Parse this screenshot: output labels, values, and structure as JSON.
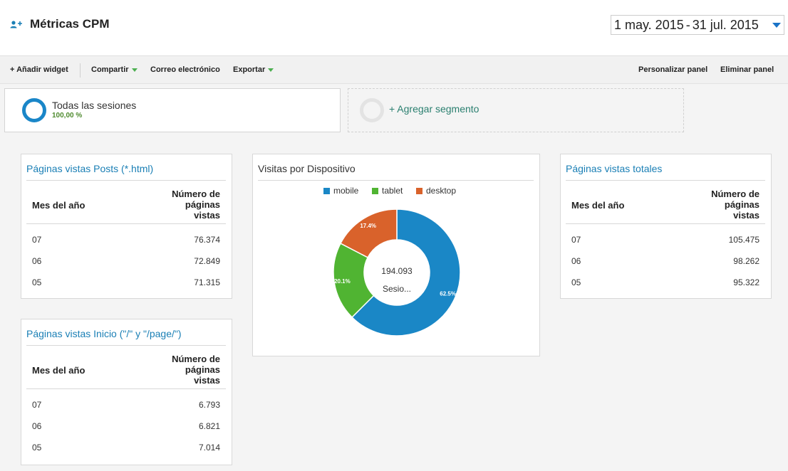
{
  "header": {
    "title": "Métricas CPM",
    "date_start": "1 may. 2015",
    "date_sep": "-",
    "date_end": "31 jul. 2015"
  },
  "toolbar": {
    "add_widget": "+ Añadir widget",
    "share": "Compartir",
    "email": "Correo electrónico",
    "export": "Exportar",
    "customize": "Personalizar panel",
    "delete": "Eliminar panel"
  },
  "segments": {
    "active_name": "Todas las sesiones",
    "active_pct": "100,00 %",
    "add_label": "+ Agregar segmento"
  },
  "widget_posts": {
    "title": "Páginas vistas Posts (*.html)",
    "col1": "Mes del año",
    "col2_l1": "Número de",
    "col2_l2": "páginas",
    "col2_l3": "vistas",
    "rows": [
      {
        "month": "07",
        "value": "76.374"
      },
      {
        "month": "06",
        "value": "72.849"
      },
      {
        "month": "05",
        "value": "71.315"
      }
    ]
  },
  "widget_home": {
    "title": "Páginas vistas Inicio (\"/\" y \"/page/\")",
    "col1": "Mes del año",
    "col2_l1": "Número de",
    "col2_l2": "páginas",
    "col2_l3": "vistas",
    "rows": [
      {
        "month": "07",
        "value": "6.793"
      },
      {
        "month": "06",
        "value": "6.821"
      },
      {
        "month": "05",
        "value": "7.014"
      }
    ]
  },
  "widget_total": {
    "title": "Páginas vistas totales",
    "col1": "Mes del año",
    "col2_l1": "Número de",
    "col2_l2": "páginas",
    "col2_l3": "vistas",
    "rows": [
      {
        "month": "07",
        "value": "105.475"
      },
      {
        "month": "06",
        "value": "98.262"
      },
      {
        "month": "05",
        "value": "95.322"
      }
    ]
  },
  "widget_device": {
    "title": "Visitas por Dispositivo",
    "center_value": "194.093",
    "center_label": "Sesio..."
  },
  "chart_data": {
    "type": "pie",
    "title": "Visitas por Dispositivo",
    "hole": true,
    "center_text": [
      "194.093",
      "Sesio..."
    ],
    "legend_position": "top",
    "categories": [
      "mobile",
      "tablet",
      "desktop"
    ],
    "values": [
      62.5,
      20.1,
      17.4
    ],
    "labels": [
      "62.5%",
      "20.1%",
      "17.4%"
    ],
    "colors": [
      "#1a87c6",
      "#50b432",
      "#d9622b"
    ]
  },
  "colors": {
    "accent": "#1a7fb5",
    "caret_green": "#4caf50",
    "segment_ring": "#1a86c8"
  }
}
